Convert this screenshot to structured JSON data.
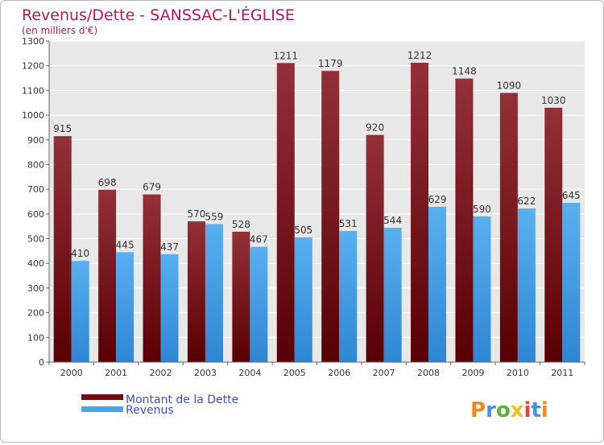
{
  "chart_data": {
    "type": "bar",
    "title": "Revenus/Dette - SANSSAC-L'ÉGLISE",
    "subtitle": "(en milliers d'€)",
    "xlabel": "",
    "ylabel": "",
    "ylim": [
      0,
      1300
    ],
    "ytick_step": 100,
    "grid": true,
    "legend_position": "bottom-left",
    "categories": [
      "2000",
      "2001",
      "2002",
      "2003",
      "2004",
      "2005",
      "2006",
      "2007",
      "2008",
      "2009",
      "2010",
      "2011"
    ],
    "series": [
      {
        "name": "Montant de la Dette",
        "color": "#7a1a1e",
        "values": [
          915,
          698,
          679,
          570,
          528,
          1211,
          1179,
          920,
          1212,
          1148,
          1090,
          1030
        ]
      },
      {
        "name": "Revenus",
        "color": "#4aa3e8",
        "values": [
          410,
          445,
          437,
          559,
          467,
          505,
          531,
          544,
          629,
          590,
          622,
          645
        ]
      }
    ]
  },
  "brand": {
    "logo_text": "Proxiti"
  },
  "colors": {
    "title": "#b0195a",
    "legend_text": "#3b4fd8",
    "plot_bg": "#e8e8e8",
    "grid": "#ffffff"
  }
}
